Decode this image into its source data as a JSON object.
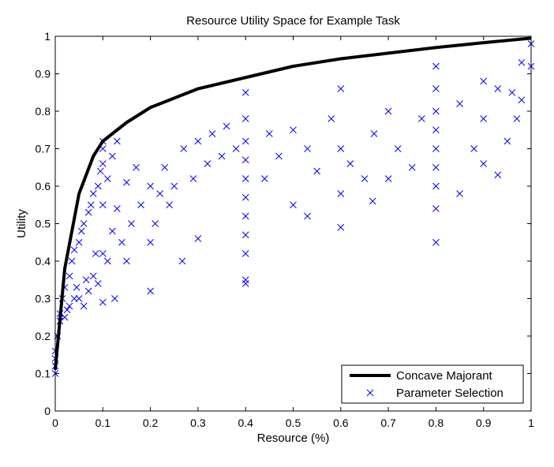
{
  "chart_data": {
    "type": "scatter",
    "title": "Resource Utility Space for Example Task",
    "xlabel": "Resource (%)",
    "ylabel": "Utility",
    "xlim": [
      0,
      1
    ],
    "ylim": [
      0,
      1
    ],
    "xticks": [
      "0",
      "0.1",
      "0.2",
      "0.3",
      "0.4",
      "0.5",
      "0.6",
      "0.7",
      "0.8",
      "0.9",
      "1"
    ],
    "yticks": [
      "0",
      "0.1",
      "0.2",
      "0.3",
      "0.4",
      "0.5",
      "0.6",
      "0.7",
      "0.8",
      "0.9",
      "1"
    ],
    "grid": false,
    "legend_position": "bottom-right",
    "colors": {
      "majorant": "#000000",
      "markers": "#0000ff"
    },
    "series": [
      {
        "name": "Concave Majorant",
        "kind": "line",
        "x": [
          0.0,
          0.02,
          0.05,
          0.08,
          0.1,
          0.15,
          0.2,
          0.3,
          0.4,
          0.5,
          0.6,
          0.7,
          0.8,
          0.9,
          1.0
        ],
        "y": [
          0.11,
          0.38,
          0.58,
          0.68,
          0.72,
          0.77,
          0.81,
          0.86,
          0.89,
          0.92,
          0.94,
          0.955,
          0.97,
          0.983,
          0.995
        ]
      },
      {
        "name": "Parameter Selection",
        "kind": "markers",
        "marker": "x",
        "x": [
          0.0,
          0.0,
          0.0,
          0.0,
          0.005,
          0.01,
          0.01,
          0.015,
          0.02,
          0.02,
          0.025,
          0.03,
          0.03,
          0.035,
          0.04,
          0.04,
          0.045,
          0.05,
          0.05,
          0.055,
          0.06,
          0.06,
          0.065,
          0.07,
          0.07,
          0.075,
          0.08,
          0.08,
          0.085,
          0.09,
          0.09,
          0.095,
          0.1,
          0.1,
          0.1,
          0.1,
          0.1,
          0.1,
          0.11,
          0.11,
          0.12,
          0.12,
          0.125,
          0.13,
          0.13,
          0.14,
          0.15,
          0.15,
          0.16,
          0.17,
          0.18,
          0.2,
          0.2,
          0.2,
          0.21,
          0.22,
          0.23,
          0.24,
          0.25,
          0.267,
          0.27,
          0.29,
          0.3,
          0.3,
          0.32,
          0.33,
          0.35,
          0.36,
          0.38,
          0.4,
          0.4,
          0.4,
          0.4,
          0.4,
          0.4,
          0.4,
          0.4,
          0.4,
          0.4,
          0.4,
          0.44,
          0.45,
          0.47,
          0.5,
          0.5,
          0.53,
          0.53,
          0.55,
          0.58,
          0.6,
          0.6,
          0.6,
          0.6,
          0.62,
          0.65,
          0.667,
          0.67,
          0.7,
          0.7,
          0.72,
          0.75,
          0.77,
          0.8,
          0.8,
          0.8,
          0.8,
          0.8,
          0.8,
          0.8,
          0.8,
          0.8,
          0.85,
          0.85,
          0.88,
          0.9,
          0.9,
          0.9,
          0.93,
          0.93,
          0.95,
          0.96,
          0.97,
          0.98,
          0.98,
          1.0,
          1.0
        ],
        "y": [
          0.1,
          0.12,
          0.14,
          0.16,
          0.2,
          0.24,
          0.26,
          0.3,
          0.25,
          0.33,
          0.27,
          0.36,
          0.28,
          0.4,
          0.3,
          0.43,
          0.33,
          0.45,
          0.3,
          0.48,
          0.28,
          0.5,
          0.35,
          0.53,
          0.32,
          0.55,
          0.36,
          0.58,
          0.42,
          0.6,
          0.34,
          0.64,
          0.29,
          0.42,
          0.55,
          0.66,
          0.7,
          0.72,
          0.4,
          0.62,
          0.48,
          0.68,
          0.3,
          0.54,
          0.72,
          0.45,
          0.4,
          0.61,
          0.5,
          0.65,
          0.55,
          0.32,
          0.45,
          0.6,
          0.5,
          0.58,
          0.65,
          0.55,
          0.6,
          0.4,
          0.7,
          0.62,
          0.46,
          0.72,
          0.66,
          0.74,
          0.68,
          0.76,
          0.7,
          0.34,
          0.35,
          0.42,
          0.47,
          0.52,
          0.57,
          0.62,
          0.67,
          0.72,
          0.78,
          0.85,
          0.62,
          0.74,
          0.68,
          0.55,
          0.75,
          0.52,
          0.7,
          0.64,
          0.78,
          0.49,
          0.58,
          0.7,
          0.86,
          0.66,
          0.62,
          0.56,
          0.74,
          0.62,
          0.8,
          0.7,
          0.65,
          0.78,
          0.45,
          0.54,
          0.6,
          0.65,
          0.7,
          0.75,
          0.8,
          0.86,
          0.92,
          0.58,
          0.82,
          0.7,
          0.66,
          0.78,
          0.88,
          0.63,
          0.86,
          0.72,
          0.85,
          0.78,
          0.83,
          0.93,
          0.92,
          0.98
        ]
      }
    ]
  }
}
